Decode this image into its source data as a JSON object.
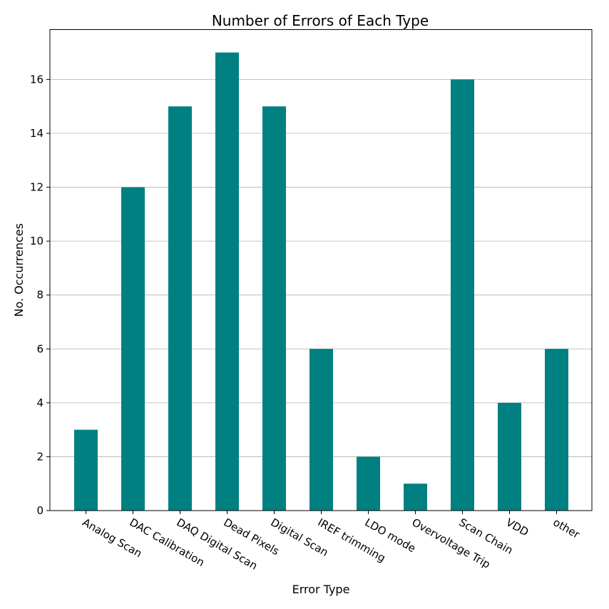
{
  "chart_data": {
    "type": "bar",
    "title": "Number of Errors of Each Type",
    "xlabel": "Error Type",
    "ylabel": "No. Occurrences",
    "categories": [
      "Analog Scan",
      "DAC Calibration",
      "DAQ Digital Scan",
      "Dead Pixels",
      "Digital Scan",
      "IREF trimming",
      "LDO mode",
      "Overvoltage Trip",
      "Scan Chain",
      "VDD",
      "other"
    ],
    "values": [
      3,
      12,
      15,
      17,
      15,
      6,
      2,
      1,
      16,
      4,
      6
    ],
    "ylim": [
      0,
      17.85
    ],
    "yticks": [
      0,
      2,
      4,
      6,
      8,
      10,
      12,
      14,
      16
    ],
    "grid": "horizontal",
    "bar_color": "#008080",
    "xtick_rotation_deg": 30
  }
}
